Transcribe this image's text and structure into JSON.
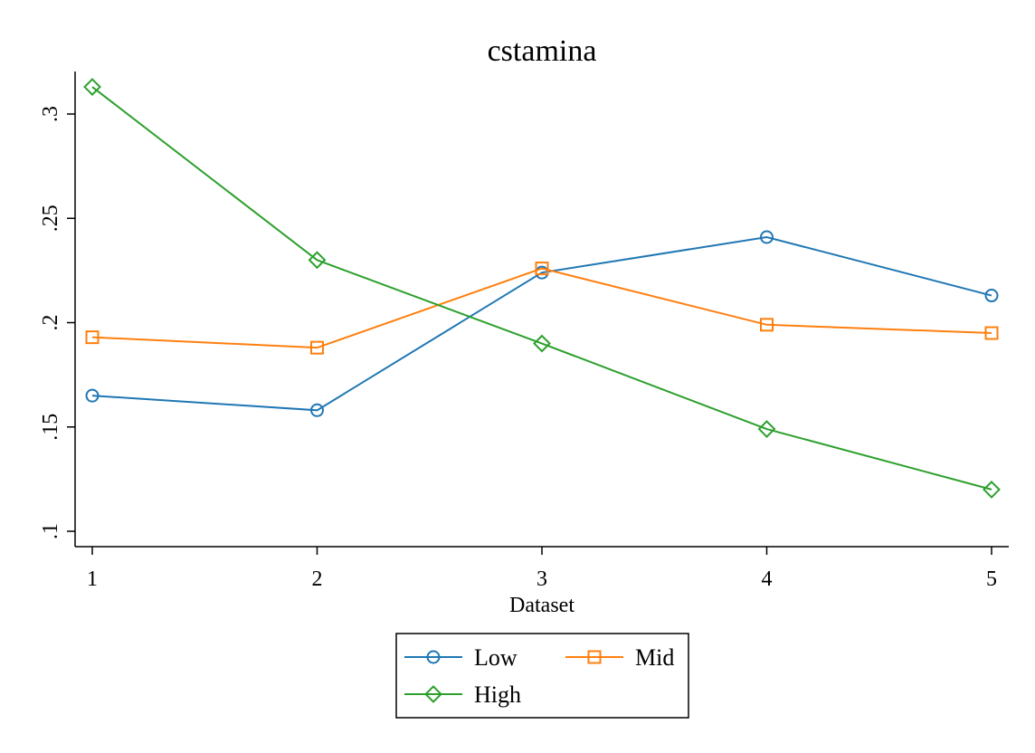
{
  "chart_data": {
    "type": "line",
    "title": "cstamina",
    "xlabel": "Dataset",
    "ylabel": "",
    "x": [
      1,
      2,
      3,
      4,
      5
    ],
    "x_tick_labels": [
      "1",
      "2",
      "3",
      "4",
      "5"
    ],
    "y_ticks": [
      0.1,
      0.15,
      0.2,
      0.25,
      0.3
    ],
    "y_tick_labels": [
      ".1",
      ".15",
      ".2",
      ".25",
      ".3"
    ],
    "ylim": [
      0.1,
      0.3
    ],
    "grid": false,
    "legend_position": "bottom",
    "series": [
      {
        "name": "Low",
        "color": "#1f77b4",
        "marker": "circle",
        "values": [
          0.165,
          0.158,
          0.224,
          0.241,
          0.213
        ]
      },
      {
        "name": "Mid",
        "color": "#ff7f0e",
        "marker": "square",
        "values": [
          0.193,
          0.188,
          0.226,
          0.199,
          0.195
        ]
      },
      {
        "name": "High",
        "color": "#2ca02c",
        "marker": "diamond",
        "values": [
          0.313,
          0.23,
          0.19,
          0.149,
          0.12
        ]
      }
    ]
  }
}
